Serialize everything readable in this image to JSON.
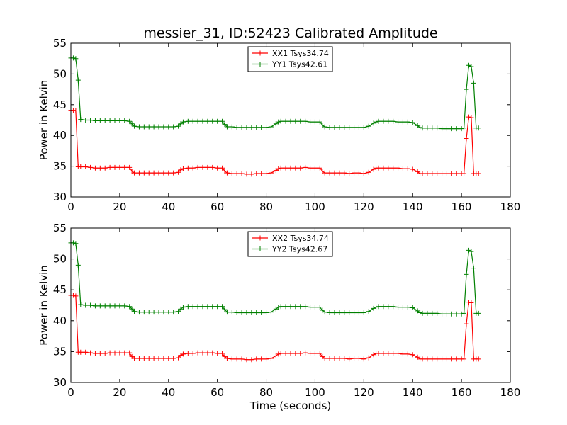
{
  "title": "messier_31, ID:52423 Calibrated Amplitude",
  "xlabel": "Time (seconds)",
  "colors": {
    "red": "#ff0000",
    "green": "#008000"
  },
  "chart_data": [
    {
      "type": "line",
      "ylabel": "Power in Kelvin",
      "xlim": [
        0,
        180
      ],
      "ylim": [
        30,
        55
      ],
      "x_ticks": [
        "0",
        "20",
        "40",
        "60",
        "80",
        "100",
        "120",
        "140",
        "160",
        "180"
      ],
      "y_ticks": [
        "30",
        "35",
        "40",
        "45",
        "50",
        "55"
      ],
      "legend_position": "top-center",
      "series": [
        {
          "name": "XX1 Tsys34.74",
          "color": "#ff0000",
          "x": [
            0,
            1,
            2,
            3,
            4,
            6,
            8,
            10,
            12,
            14,
            16,
            18,
            20,
            22,
            24,
            25,
            26,
            28,
            30,
            32,
            34,
            36,
            38,
            40,
            42,
            44,
            45,
            46,
            48,
            50,
            52,
            54,
            56,
            58,
            60,
            62,
            63,
            64,
            66,
            68,
            70,
            72,
            74,
            76,
            78,
            80,
            82,
            84,
            85,
            86,
            88,
            90,
            92,
            94,
            96,
            98,
            100,
            102,
            103,
            104,
            106,
            108,
            110,
            112,
            114,
            116,
            118,
            120,
            122,
            124,
            125,
            126,
            128,
            130,
            132,
            134,
            136,
            138,
            140,
            142,
            143,
            144,
            146,
            148,
            150,
            152,
            154,
            156,
            158,
            160,
            161,
            162,
            163,
            164,
            165,
            166,
            167
          ],
          "y": [
            44.1,
            44.1,
            44.0,
            34.9,
            34.9,
            34.9,
            34.8,
            34.7,
            34.7,
            34.7,
            34.8,
            34.8,
            34.8,
            34.8,
            34.8,
            34.2,
            33.9,
            33.9,
            33.9,
            33.9,
            33.9,
            33.9,
            33.9,
            33.9,
            33.9,
            34.0,
            34.4,
            34.6,
            34.7,
            34.7,
            34.8,
            34.8,
            34.8,
            34.8,
            34.7,
            34.7,
            34.2,
            33.9,
            33.8,
            33.8,
            33.8,
            33.7,
            33.7,
            33.8,
            33.8,
            33.8,
            33.9,
            34.3,
            34.6,
            34.7,
            34.7,
            34.7,
            34.7,
            34.7,
            34.8,
            34.7,
            34.7,
            34.7,
            34.2,
            33.9,
            33.9,
            33.9,
            33.9,
            33.9,
            33.8,
            33.9,
            33.9,
            33.8,
            34.0,
            34.5,
            34.7,
            34.7,
            34.7,
            34.7,
            34.7,
            34.7,
            34.6,
            34.6,
            34.5,
            34.1,
            33.8,
            33.8,
            33.8,
            33.8,
            33.8,
            33.8,
            33.8,
            33.8,
            33.8,
            33.8,
            33.8,
            39.5,
            43.0,
            42.9,
            33.8,
            33.8,
            33.8
          ]
        },
        {
          "name": "YY1 Tsys42.61",
          "color": "#008000",
          "x": [
            0,
            1,
            2,
            3,
            4,
            6,
            8,
            10,
            12,
            14,
            16,
            18,
            20,
            22,
            24,
            25,
            26,
            28,
            30,
            32,
            34,
            36,
            38,
            40,
            42,
            44,
            45,
            46,
            48,
            50,
            52,
            54,
            56,
            58,
            60,
            62,
            63,
            64,
            66,
            68,
            70,
            72,
            74,
            76,
            78,
            80,
            82,
            84,
            85,
            86,
            88,
            90,
            92,
            94,
            96,
            98,
            100,
            102,
            103,
            104,
            106,
            108,
            110,
            112,
            114,
            116,
            118,
            120,
            122,
            124,
            125,
            126,
            128,
            130,
            132,
            134,
            136,
            138,
            140,
            142,
            143,
            144,
            146,
            148,
            150,
            152,
            154,
            156,
            158,
            160,
            161,
            162,
            163,
            164,
            165,
            166,
            167
          ],
          "y": [
            52.6,
            52.6,
            52.5,
            49.0,
            42.6,
            42.5,
            42.5,
            42.4,
            42.4,
            42.4,
            42.4,
            42.4,
            42.4,
            42.4,
            42.3,
            41.9,
            41.5,
            41.4,
            41.4,
            41.4,
            41.4,
            41.4,
            41.4,
            41.4,
            41.4,
            41.5,
            41.9,
            42.2,
            42.3,
            42.3,
            42.3,
            42.3,
            42.3,
            42.3,
            42.3,
            42.3,
            41.8,
            41.4,
            41.4,
            41.3,
            41.3,
            41.3,
            41.3,
            41.3,
            41.3,
            41.3,
            41.4,
            41.9,
            42.2,
            42.3,
            42.3,
            42.3,
            42.3,
            42.3,
            42.3,
            42.2,
            42.2,
            42.2,
            41.7,
            41.4,
            41.3,
            41.3,
            41.3,
            41.3,
            41.3,
            41.3,
            41.3,
            41.3,
            41.5,
            42.0,
            42.2,
            42.3,
            42.3,
            42.3,
            42.3,
            42.2,
            42.2,
            42.2,
            42.1,
            41.6,
            41.3,
            41.2,
            41.2,
            41.2,
            41.2,
            41.1,
            41.1,
            41.1,
            41.1,
            41.1,
            41.2,
            47.5,
            51.4,
            51.2,
            48.5,
            41.2,
            41.2
          ]
        }
      ]
    },
    {
      "type": "line",
      "ylabel": "Power in Kelvin",
      "xlim": [
        0,
        180
      ],
      "ylim": [
        30,
        55
      ],
      "x_ticks": [
        "0",
        "20",
        "40",
        "60",
        "80",
        "100",
        "120",
        "140",
        "160",
        "180"
      ],
      "y_ticks": [
        "30",
        "35",
        "40",
        "45",
        "50",
        "55"
      ],
      "legend_position": "top-center",
      "series": [
        {
          "name": "XX2 Tsys34.74",
          "color": "#ff0000",
          "x": [
            0,
            1,
            2,
            3,
            4,
            6,
            8,
            10,
            12,
            14,
            16,
            18,
            20,
            22,
            24,
            25,
            26,
            28,
            30,
            32,
            34,
            36,
            38,
            40,
            42,
            44,
            45,
            46,
            48,
            50,
            52,
            54,
            56,
            58,
            60,
            62,
            63,
            64,
            66,
            68,
            70,
            72,
            74,
            76,
            78,
            80,
            82,
            84,
            85,
            86,
            88,
            90,
            92,
            94,
            96,
            98,
            100,
            102,
            103,
            104,
            106,
            108,
            110,
            112,
            114,
            116,
            118,
            120,
            122,
            124,
            125,
            126,
            128,
            130,
            132,
            134,
            136,
            138,
            140,
            142,
            143,
            144,
            146,
            148,
            150,
            152,
            154,
            156,
            158,
            160,
            161,
            162,
            163,
            164,
            165,
            166,
            167
          ],
          "y": [
            44.1,
            44.1,
            44.0,
            34.9,
            34.9,
            34.9,
            34.8,
            34.7,
            34.7,
            34.7,
            34.8,
            34.8,
            34.8,
            34.8,
            34.8,
            34.2,
            33.9,
            33.9,
            33.9,
            33.9,
            33.9,
            33.9,
            33.9,
            33.9,
            33.9,
            34.0,
            34.4,
            34.6,
            34.7,
            34.7,
            34.8,
            34.8,
            34.8,
            34.8,
            34.7,
            34.7,
            34.2,
            33.9,
            33.8,
            33.8,
            33.8,
            33.7,
            33.7,
            33.8,
            33.8,
            33.8,
            33.9,
            34.3,
            34.6,
            34.7,
            34.7,
            34.7,
            34.7,
            34.7,
            34.8,
            34.7,
            34.7,
            34.7,
            34.2,
            33.9,
            33.9,
            33.9,
            33.9,
            33.9,
            33.8,
            33.9,
            33.9,
            33.8,
            34.0,
            34.5,
            34.7,
            34.7,
            34.7,
            34.7,
            34.7,
            34.7,
            34.6,
            34.6,
            34.5,
            34.1,
            33.8,
            33.8,
            33.8,
            33.8,
            33.8,
            33.8,
            33.8,
            33.8,
            33.8,
            33.8,
            33.8,
            39.5,
            43.0,
            42.9,
            33.8,
            33.8,
            33.8
          ]
        },
        {
          "name": "YY2 Tsys42.67",
          "color": "#008000",
          "x": [
            0,
            1,
            2,
            3,
            4,
            6,
            8,
            10,
            12,
            14,
            16,
            18,
            20,
            22,
            24,
            25,
            26,
            28,
            30,
            32,
            34,
            36,
            38,
            40,
            42,
            44,
            45,
            46,
            48,
            50,
            52,
            54,
            56,
            58,
            60,
            62,
            63,
            64,
            66,
            68,
            70,
            72,
            74,
            76,
            78,
            80,
            82,
            84,
            85,
            86,
            88,
            90,
            92,
            94,
            96,
            98,
            100,
            102,
            103,
            104,
            106,
            108,
            110,
            112,
            114,
            116,
            118,
            120,
            122,
            124,
            125,
            126,
            128,
            130,
            132,
            134,
            136,
            138,
            140,
            142,
            143,
            144,
            146,
            148,
            150,
            152,
            154,
            156,
            158,
            160,
            161,
            162,
            163,
            164,
            165,
            166,
            167
          ],
          "y": [
            52.6,
            52.6,
            52.5,
            49.0,
            42.6,
            42.5,
            42.5,
            42.4,
            42.4,
            42.4,
            42.4,
            42.4,
            42.4,
            42.4,
            42.3,
            41.9,
            41.5,
            41.4,
            41.4,
            41.4,
            41.4,
            41.4,
            41.4,
            41.4,
            41.4,
            41.5,
            41.9,
            42.2,
            42.3,
            42.3,
            42.3,
            42.3,
            42.3,
            42.3,
            42.3,
            42.3,
            41.8,
            41.4,
            41.4,
            41.3,
            41.3,
            41.3,
            41.3,
            41.3,
            41.3,
            41.3,
            41.4,
            41.9,
            42.2,
            42.3,
            42.3,
            42.3,
            42.3,
            42.3,
            42.3,
            42.2,
            42.2,
            42.2,
            41.7,
            41.4,
            41.3,
            41.3,
            41.3,
            41.3,
            41.3,
            41.3,
            41.3,
            41.3,
            41.5,
            42.0,
            42.2,
            42.3,
            42.3,
            42.3,
            42.3,
            42.2,
            42.2,
            42.2,
            42.1,
            41.6,
            41.3,
            41.2,
            41.2,
            41.2,
            41.2,
            41.1,
            41.1,
            41.1,
            41.1,
            41.1,
            41.2,
            47.5,
            51.4,
            51.2,
            48.5,
            41.2,
            41.2
          ]
        }
      ]
    }
  ]
}
